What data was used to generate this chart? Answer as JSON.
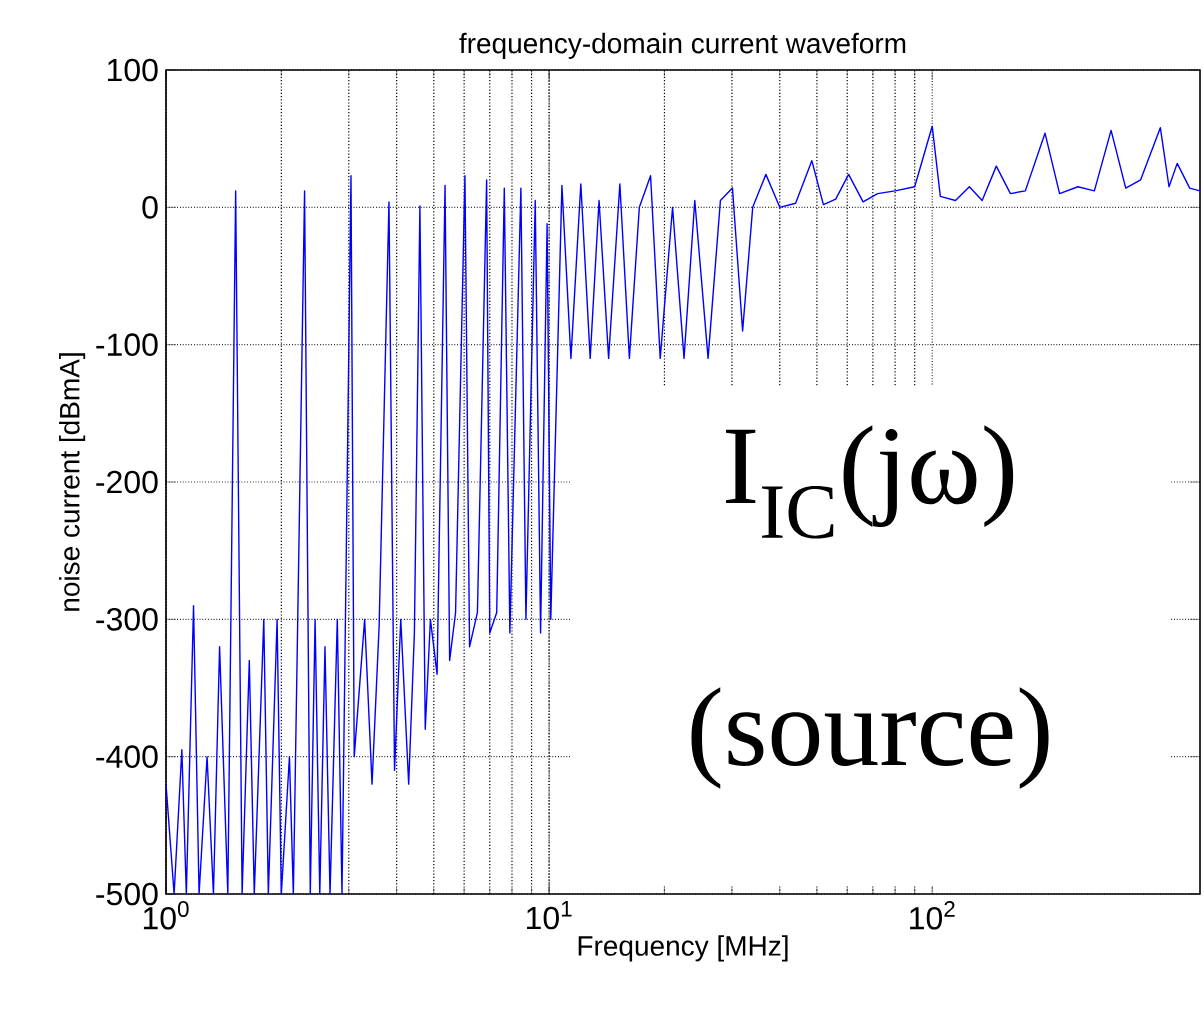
{
  "chart_data": {
    "type": "line",
    "title": "frequency-domain current waveform",
    "xlabel": "Frequency [MHz]",
    "ylabel": "noise current [dBmA]",
    "log": "x",
    "grid": true,
    "color": "#0000ff",
    "xlim": [
      1,
      500
    ],
    "ylim": [
      -500,
      100
    ],
    "xticks": [
      {
        "value": 1,
        "label": "10$^{0}$"
      },
      {
        "value": 10,
        "label": "10$^{1}$"
      },
      {
        "value": 100,
        "label": "10$^{2}$"
      }
    ],
    "yticks": [
      -500,
      -400,
      -300,
      -200,
      -100,
      0,
      100
    ],
    "x": [
      1.0,
      1.05,
      1.1,
      1.13,
      1.18,
      1.22,
      1.28,
      1.33,
      1.38,
      1.45,
      1.52,
      1.58,
      1.65,
      1.7,
      1.8,
      1.85,
      1.95,
      2.0,
      2.1,
      2.15,
      2.3,
      2.38,
      2.45,
      2.52,
      2.6,
      2.68,
      2.8,
      2.88,
      3.04,
      3.1,
      3.3,
      3.45,
      3.6,
      3.82,
      3.95,
      4.1,
      4.3,
      4.45,
      4.6,
      4.75,
      4.9,
      5.1,
      5.35,
      5.5,
      5.7,
      6.03,
      6.2,
      6.5,
      6.87,
      7.0,
      7.3,
      7.64,
      7.9,
      8.44,
      8.7,
      9.2,
      9.5,
      9.88,
      10.1,
      10.8,
      11.4,
      12.1,
      12.8,
      13.5,
      14.3,
      15.3,
      16.2,
      17.2,
      18.4,
      19.5,
      21,
      22.5,
      24,
      26,
      28,
      30.1,
      32,
      34,
      36.8,
      40,
      44,
      48.5,
      52,
      56,
      60.5,
      66,
      72,
      80,
      90,
      100,
      105,
      115,
      125,
      135,
      147,
      160,
      175,
      197,
      215,
      240,
      265,
      293,
      320,
      350,
      394,
      415,
      436,
      470,
      500
    ],
    "values": [
      -420,
      -500,
      -395,
      -500,
      -290,
      -500,
      -400,
      -500,
      -320,
      -500,
      12,
      -500,
      -330,
      -500,
      -300,
      -500,
      -300,
      -500,
      -400,
      -500,
      12,
      -500,
      -300,
      -500,
      -320,
      -500,
      -300,
      -500,
      23,
      -400,
      -300,
      -420,
      -305,
      4,
      -410,
      -300,
      -420,
      -310,
      1,
      -380,
      -300,
      -340,
      16,
      -330,
      -295,
      23,
      -320,
      -295,
      20,
      -310,
      -295,
      14,
      -310,
      14,
      -300,
      5,
      -310,
      -12,
      -300,
      16,
      -110,
      17,
      -110,
      5,
      -110,
      17,
      -110,
      0,
      23,
      -110,
      0,
      -110,
      5,
      -110,
      5,
      14,
      -90,
      0,
      24,
      0,
      3,
      34,
      2,
      6,
      24,
      4,
      10,
      12,
      15,
      59,
      8,
      5,
      15,
      5,
      30,
      10,
      12,
      54,
      10,
      15,
      12,
      56,
      14,
      20,
      58,
      15,
      32,
      14,
      12
    ],
    "annotations": [
      "I$_{IC}$(jω)",
      "(source)"
    ]
  }
}
